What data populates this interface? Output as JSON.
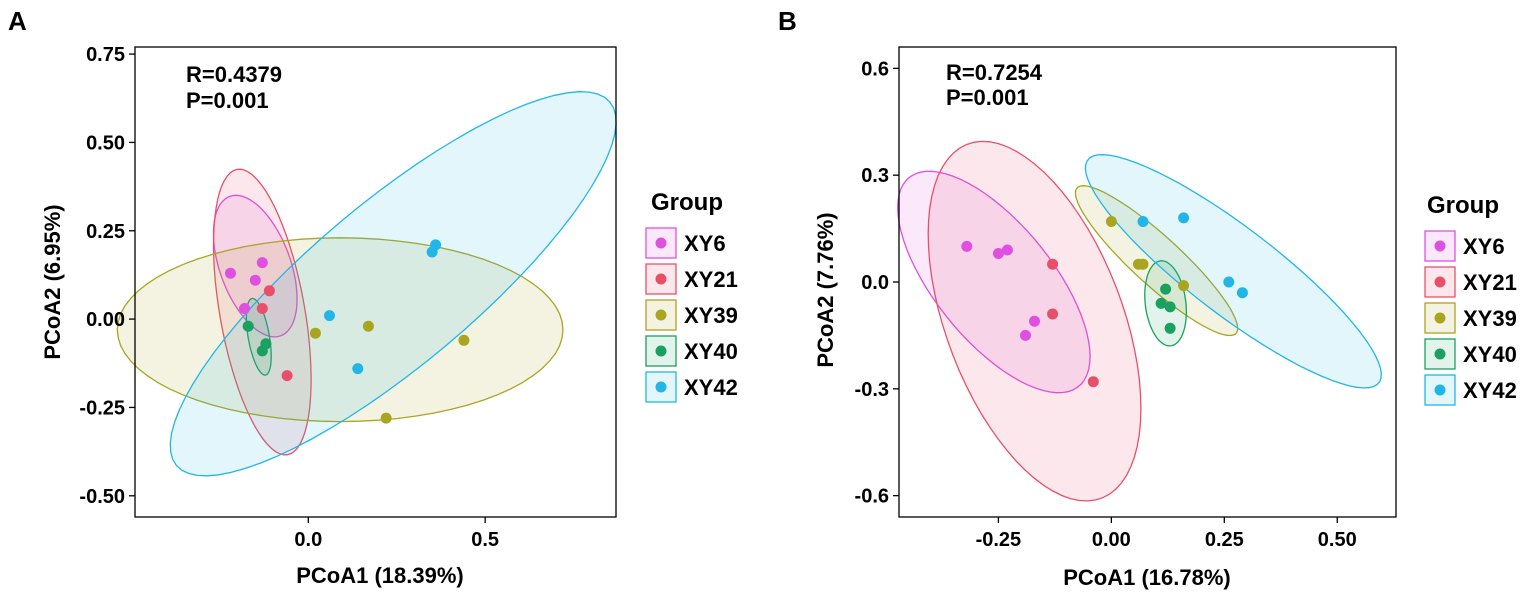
{
  "groups": [
    {
      "name": "XY6",
      "color": "#E050E0"
    },
    {
      "name": "XY21",
      "color": "#E8506A"
    },
    {
      "name": "XY39",
      "color": "#AAA520"
    },
    {
      "name": "XY40",
      "color": "#1AA060"
    },
    {
      "name": "XY42",
      "color": "#22B6E8"
    }
  ],
  "chart_data": [
    {
      "type": "scatter",
      "panel_label": "A",
      "stats": {
        "r": "R=0.4379",
        "p": "P=0.001"
      },
      "xlabel": "PCoA1 (18.39%)",
      "ylabel": "PCoA2 (6.95%)",
      "xlim": [
        -0.49,
        0.87
      ],
      "ylim": [
        -0.56,
        0.77
      ],
      "xticks": [
        {
          "v": 0.0,
          "label": "0.0"
        },
        {
          "v": 0.5,
          "label": "0.5"
        }
      ],
      "yticks": [
        {
          "v": 0.75,
          "label": "0.75"
        },
        {
          "v": 0.5,
          "label": "0.50"
        },
        {
          "v": 0.25,
          "label": "0.25"
        },
        {
          "v": 0.0,
          "label": "0.00"
        },
        {
          "v": -0.25,
          "label": "-0.25"
        },
        {
          "v": -0.5,
          "label": "-0.50"
        }
      ],
      "legend_title": "Group",
      "series": [
        {
          "name": "XY6",
          "points": [
            [
              -0.22,
              0.13
            ],
            [
              -0.15,
              0.11
            ],
            [
              -0.13,
              0.16
            ],
            [
              -0.18,
              0.03
            ]
          ],
          "ellipse": {
            "cx": -0.15,
            "cy": 0.15,
            "rx": 0.1,
            "ry": 0.21,
            "angle": 20
          }
        },
        {
          "name": "XY21",
          "points": [
            [
              -0.13,
              0.03
            ],
            [
              -0.11,
              0.08
            ],
            [
              -0.06,
              -0.16
            ]
          ],
          "ellipse": {
            "cx": -0.13,
            "cy": 0.02,
            "rx": 0.12,
            "ry": 0.41,
            "angle": 10
          }
        },
        {
          "name": "XY39",
          "points": [
            [
              0.02,
              -0.04
            ],
            [
              0.17,
              -0.02
            ],
            [
              0.44,
              -0.06
            ],
            [
              0.22,
              -0.28
            ]
          ],
          "ellipse": {
            "cx": 0.09,
            "cy": -0.03,
            "rx": 0.63,
            "ry": 0.26,
            "angle": 0
          }
        },
        {
          "name": "XY40",
          "points": [
            [
              -0.17,
              -0.02
            ],
            [
              -0.13,
              -0.09
            ],
            [
              -0.12,
              -0.07
            ]
          ],
          "ellipse": {
            "cx": -0.14,
            "cy": -0.05,
            "rx": 0.03,
            "ry": 0.11,
            "angle": 10
          }
        },
        {
          "name": "XY42",
          "points": [
            [
              0.36,
              0.21
            ],
            [
              0.35,
              0.19
            ],
            [
              0.06,
              0.01
            ],
            [
              0.14,
              -0.14
            ]
          ],
          "ellipse": {
            "cx": 0.24,
            "cy": 0.1,
            "rx": 0.23,
            "ry": 0.8,
            "angle": -50
          }
        }
      ]
    },
    {
      "type": "scatter",
      "panel_label": "B",
      "stats": {
        "r": "R=0.7254",
        "p": "P=0.001"
      },
      "xlabel": "PCoA1 (16.78%)",
      "ylabel": "PCoA2 (7.76%)",
      "xlim": [
        -0.47,
        0.63
      ],
      "ylim": [
        -0.66,
        0.66
      ],
      "xticks": [
        {
          "v": -0.25,
          "label": "-0.25"
        },
        {
          "v": 0.0,
          "label": "0.00"
        },
        {
          "v": 0.25,
          "label": "0.25"
        },
        {
          "v": 0.5,
          "label": "0.50"
        }
      ],
      "yticks": [
        {
          "v": 0.6,
          "label": "0.6"
        },
        {
          "v": 0.3,
          "label": "0.3"
        },
        {
          "v": 0.0,
          "label": "0.0"
        },
        {
          "v": -0.3,
          "label": "-0.3"
        },
        {
          "v": -0.6,
          "label": "-0.6"
        }
      ],
      "legend_title": "Group",
      "series": [
        {
          "name": "XY6",
          "points": [
            [
              -0.32,
              0.1
            ],
            [
              -0.25,
              0.08
            ],
            [
              -0.23,
              0.09
            ],
            [
              -0.17,
              -0.11
            ],
            [
              -0.19,
              -0.15
            ]
          ],
          "ellipse": {
            "cx": -0.26,
            "cy": 0.0,
            "rx": 0.14,
            "ry": 0.35,
            "angle": 30
          }
        },
        {
          "name": "XY21",
          "points": [
            [
              -0.13,
              0.05
            ],
            [
              -0.13,
              -0.09
            ],
            [
              -0.04,
              -0.28
            ]
          ],
          "ellipse": {
            "cx": -0.17,
            "cy": -0.11,
            "rx": 0.2,
            "ry": 0.52,
            "angle": 15
          }
        },
        {
          "name": "XY39",
          "points": [
            [
              0.0,
              0.17
            ],
            [
              0.07,
              0.05
            ],
            [
              0.06,
              0.05
            ],
            [
              0.16,
              -0.01
            ]
          ],
          "ellipse": {
            "cx": 0.1,
            "cy": 0.06,
            "rx": 0.06,
            "ry": 0.27,
            "angle": 40
          }
        },
        {
          "name": "XY40",
          "points": [
            [
              0.12,
              -0.02
            ],
            [
              0.11,
              -0.06
            ],
            [
              0.13,
              -0.07
            ],
            [
              0.13,
              -0.13
            ]
          ],
          "ellipse": {
            "cx": 0.12,
            "cy": -0.06,
            "rx": 0.045,
            "ry": 0.12,
            "angle": 5
          }
        },
        {
          "name": "XY42",
          "points": [
            [
              0.16,
              0.18
            ],
            [
              0.07,
              0.17
            ],
            [
              0.26,
              0.0
            ],
            [
              0.29,
              -0.03
            ]
          ],
          "ellipse": {
            "cx": 0.27,
            "cy": 0.03,
            "rx": 0.11,
            "ry": 0.45,
            "angle": 45
          }
        }
      ]
    }
  ]
}
